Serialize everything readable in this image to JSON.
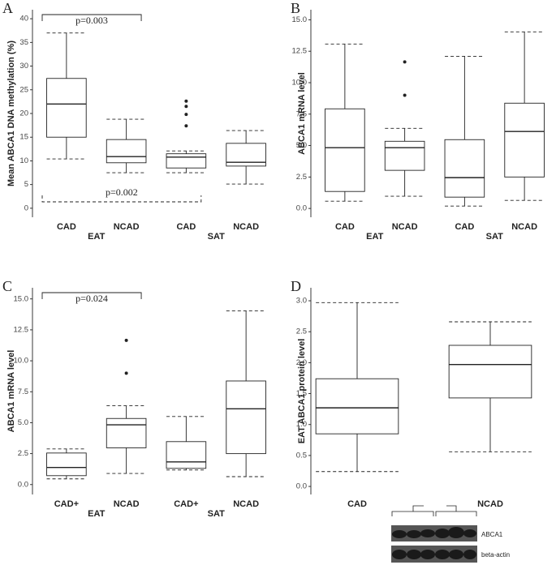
{
  "chart_data": [
    {
      "type": "box",
      "panel": "A",
      "y_label": "Mean ABCA1 DNA methylation (%)",
      "categories": [
        "CAD",
        "NCAD",
        "CAD",
        "NCAD"
      ],
      "groups": [
        "EAT",
        "SAT"
      ],
      "boxes": [
        {
          "whisker_low": 10.4,
          "q1": 15.0,
          "median": 22.0,
          "q3": 27.4,
          "whisker_high": 37.0,
          "outliers": []
        },
        {
          "whisker_low": 7.5,
          "q1": 9.6,
          "median": 10.9,
          "q3": 14.5,
          "whisker_high": 18.8,
          "outliers": []
        },
        {
          "whisker_low": 7.5,
          "q1": 8.5,
          "median": 10.8,
          "q3": 11.5,
          "whisker_high": 12.1,
          "outliers": [
            22.6,
            21.5,
            19.8,
            17.4
          ]
        },
        {
          "whisker_low": 5.1,
          "q1": 8.9,
          "median": 9.7,
          "q3": 13.7,
          "whisker_high": 16.4,
          "outliers": []
        }
      ],
      "ylim": [
        -1.9,
        41.9
      ],
      "yticks": [
        0,
        5,
        10,
        15,
        20,
        25,
        30,
        35,
        40
      ],
      "annotations": [
        "p=0.003",
        "p=0.002"
      ]
    },
    {
      "type": "box",
      "panel": "B",
      "y_label": "ABCA1 mRNA level",
      "categories": [
        "CAD",
        "NCAD",
        "CAD",
        "NCAD"
      ],
      "groups": [
        "EAT",
        "SAT"
      ],
      "boxes": [
        {
          "whisker_low": 0.58,
          "q1": 1.35,
          "median": 4.83,
          "q3": 7.92,
          "whisker_high": 13.07,
          "outliers": []
        },
        {
          "whisker_low": 0.97,
          "q1": 3.03,
          "median": 4.83,
          "q3": 5.34,
          "whisker_high": 6.37,
          "outliers": [
            11.65,
            9.0
          ]
        },
        {
          "whisker_low": 0.19,
          "q1": 0.9,
          "median": 2.45,
          "q3": 5.47,
          "whisker_high": 12.1,
          "outliers": []
        },
        {
          "whisker_low": 0.64,
          "q1": 2.5,
          "median": 6.12,
          "q3": 8.37,
          "whisker_high": 14.04,
          "outliers": []
        }
      ],
      "ylim": [
        -0.7,
        15.8
      ],
      "yticks": [
        {
          "value": 0,
          "label": "0.0"
        },
        {
          "value": 2.5,
          "label": "2.5"
        },
        {
          "value": 5,
          "label": "5.0"
        },
        {
          "value": 7.5,
          "label": "7.5"
        },
        {
          "value": 10,
          "label": "10.0"
        },
        {
          "value": 12.5,
          "label": "12.5"
        },
        {
          "value": 15,
          "label": "15.0"
        }
      ],
      "annotations": []
    },
    {
      "type": "box",
      "panel": "C",
      "y_label": "ABCA1 mRNA level",
      "categories": [
        "CAD+",
        "NCAD",
        "CAD+",
        "NCAD"
      ],
      "groups": [
        "EAT",
        "SAT"
      ],
      "boxes": [
        {
          "whisker_low": 0.46,
          "q1": 0.72,
          "median": 1.38,
          "q3": 2.55,
          "whisker_high": 2.88,
          "outliers": []
        },
        {
          "whisker_low": 0.9,
          "q1": 2.97,
          "median": 4.83,
          "q3": 5.34,
          "whisker_high": 6.37,
          "outliers": [
            11.65,
            9.0
          ]
        },
        {
          "whisker_low": 1.18,
          "q1": 1.31,
          "median": 1.83,
          "q3": 3.47,
          "whisker_high": 5.5,
          "outliers": []
        },
        {
          "whisker_low": 0.64,
          "q1": 2.5,
          "median": 6.12,
          "q3": 8.37,
          "whisker_high": 14.04,
          "outliers": []
        }
      ],
      "ylim": [
        -0.8,
        15.9
      ],
      "yticks": [
        {
          "value": 0,
          "label": "0.0"
        },
        {
          "value": 2.5,
          "label": "2.5"
        },
        {
          "value": 5,
          "label": "5.0"
        },
        {
          "value": 7.5,
          "label": "7.5"
        },
        {
          "value": 10,
          "label": "10.0"
        },
        {
          "value": 12.5,
          "label": "12.5"
        },
        {
          "value": 15,
          "label": "15.0"
        }
      ],
      "annotations": [
        "p=0.024"
      ]
    },
    {
      "type": "box",
      "panel": "D",
      "y_label": "EAT ABCA1 protein level",
      "categories": [
        "CAD",
        "NCAD"
      ],
      "groups": [],
      "boxes": [
        {
          "whisker_low": 0.24,
          "q1": 0.85,
          "median": 1.27,
          "q3": 1.74,
          "whisker_high": 2.97,
          "outliers": []
        },
        {
          "whisker_low": 0.56,
          "q1": 1.43,
          "median": 1.97,
          "q3": 2.28,
          "whisker_high": 2.66,
          "outliers": []
        }
      ],
      "ylim": [
        -0.13,
        3.21
      ],
      "yticks": [
        {
          "value": 0,
          "label": "0.0"
        },
        {
          "value": 0.5,
          "label": "0.5"
        },
        {
          "value": 1,
          "label": "1.0"
        },
        {
          "value": 1.5,
          "label": "1.5"
        },
        {
          "value": 2,
          "label": "2.0"
        },
        {
          "value": 2.5,
          "label": "2.5"
        },
        {
          "value": 3,
          "label": "3.0"
        }
      ],
      "annotations": [],
      "blot_labels": [
        "ABCA1",
        "beta-actin"
      ]
    }
  ]
}
